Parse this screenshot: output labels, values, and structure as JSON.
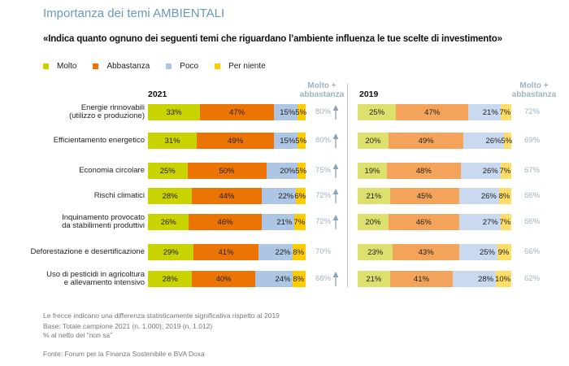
{
  "title": "Importanza dei temi AMBIENTALI",
  "question": "«Indica quanto ognuno dei seguenti temi che riguardano l’ambiente influenza le tue scelte di investimento»",
  "colors": {
    "2021": [
      "#c9d300",
      "#ec7404",
      "#adc6e4",
      "#ffcc00"
    ],
    "2019": [
      "#dde06c",
      "#f4a45a",
      "#c9d9ef",
      "#ffdd66"
    ],
    "total_text": "#9fb4c3",
    "title": "#6a9ab8"
  },
  "legend": [
    {
      "label": "Molto"
    },
    {
      "label": "Abbastanza"
    },
    {
      "label": "Poco"
    },
    {
      "label": "Per niente"
    }
  ],
  "panels": {
    "left_year": "2021",
    "right_year": "2019",
    "total_header_line1": "Molto +",
    "total_header_line2": "abbastanza"
  },
  "chart_data": {
    "type": "bar",
    "stacked": true,
    "orientation": "horizontal",
    "title": "Importanza dei temi AMBIENTALI",
    "subtitle": "«Indica quanto ognuno dei seguenti temi che riguardano l’ambiente influenza le tue scelte di investimento»",
    "categories": [
      "Energie rinnovabili (utilizzo e produzione)",
      "Efficientamento energetico",
      "Economia circolare",
      "Rischi climatici",
      "Inquinamento provocato da stabilimenti produttivi",
      "Deforestazione e desertificazione",
      "Uso di pesticidi in agricoltura e allevamento intensivo"
    ],
    "category_lines": [
      [
        "Energie rinnovabili",
        "(utilizzo e produzione)"
      ],
      [
        "Efficientamento energetico"
      ],
      [
        "Economia circolare"
      ],
      [
        "Rischi climatici"
      ],
      [
        "Inquinamento provocato",
        "da stabilimenti produttivi"
      ],
      [
        "Deforestazione e desertificazione"
      ],
      [
        "Uso di pesticidi in agricoltura",
        "e allevamento intensivo"
      ]
    ],
    "legend": [
      "Molto",
      "Abbastanza",
      "Poco",
      "Per niente"
    ],
    "unit": "%",
    "xlim": [
      0,
      100
    ],
    "groups": [
      {
        "year": "2021",
        "series": [
          {
            "name": "Molto",
            "values": [
              33,
              31,
              25,
              28,
              26,
              29,
              28
            ]
          },
          {
            "name": "Abbastanza",
            "values": [
              47,
              49,
              50,
              44,
              46,
              41,
              40
            ]
          },
          {
            "name": "Poco",
            "values": [
              15,
              15,
              20,
              22,
              21,
              22,
              24
            ]
          },
          {
            "name": "Per niente",
            "values": [
              5,
              5,
              5,
              6,
              7,
              8,
              8
            ]
          }
        ],
        "molto_abbastanza": [
          80,
          80,
          75,
          72,
          72,
          70,
          68
        ],
        "significant_increase": [
          true,
          true,
          true,
          true,
          true,
          false,
          true
        ]
      },
      {
        "year": "2019",
        "series": [
          {
            "name": "Molto",
            "values": [
              25,
              20,
              19,
              21,
              20,
              23,
              21
            ]
          },
          {
            "name": "Abbastanza",
            "values": [
              47,
              49,
              48,
              45,
              46,
              43,
              41
            ]
          },
          {
            "name": "Poco",
            "values": [
              21,
              26,
              26,
              26,
              27,
              25,
              28
            ]
          },
          {
            "name": "Per niente",
            "values": [
              7,
              5,
              7,
              8,
              7,
              9,
              10
            ]
          }
        ],
        "molto_abbastanza": [
          72,
          69,
          67,
          66,
          66,
          66,
          62
        ]
      }
    ]
  },
  "notes": [
    "Le frecce indicano una differenza statisticamente significativa rispetto al 2019",
    "Base: Totale campione 2021 (n. 1.000); 2019 (n. 1.012)",
    "% al netto dei “non sa”"
  ],
  "source": "Fonte: Forum per la Finanza Sostenibile e BVA Doxa"
}
